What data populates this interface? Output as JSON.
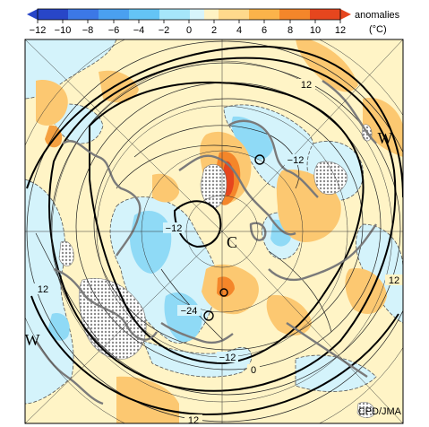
{
  "legend": {
    "title": "anomalies",
    "unit": "(°C)",
    "ticks": [
      "−12",
      "−10",
      "−8",
      "−6",
      "−4",
      "−2",
      "0",
      "2",
      "4",
      "6",
      "8",
      "10",
      "12"
    ],
    "colors": [
      "#2846c8",
      "#3c78e6",
      "#4aa0f0",
      "#64c4f5",
      "#a6e6fa",
      "#d7f5fc",
      "#fff3c4",
      "#ffd98c",
      "#fbb34a",
      "#f4862a",
      "#e6461e"
    ]
  },
  "map": {
    "contour_labels": [
      "12",
      "−12",
      "−12",
      "12",
      "12",
      "−24",
      "−12",
      "0",
      "12"
    ],
    "system_labels": [
      "W",
      "W",
      "C"
    ],
    "credit": "CPD/JMA"
  }
}
